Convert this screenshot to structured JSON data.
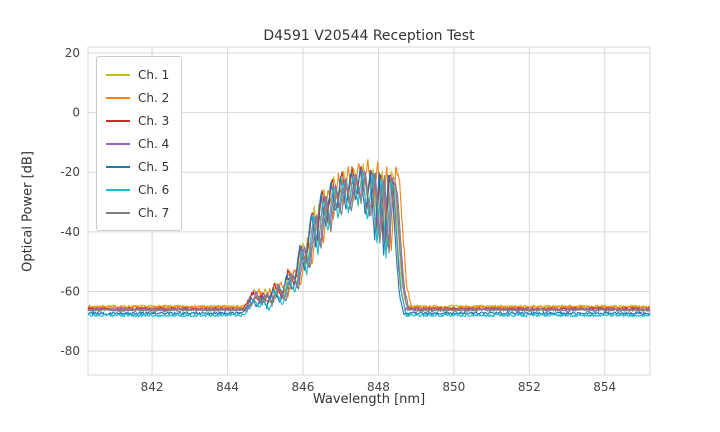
{
  "chart_data": {
    "type": "line",
    "title": "D4591 V20544 Reception Test",
    "xlabel": "Wavelength [nm]",
    "ylabel": "Optical Power [dB]",
    "xlim": [
      840.3,
      855.2
    ],
    "ylim": [
      -88,
      22
    ],
    "xticks": [
      842,
      844,
      846,
      848,
      850,
      852,
      854
    ],
    "yticks": [
      20,
      0,
      -20,
      -40,
      -60,
      -80
    ],
    "grid": true,
    "grid_color": "#d9d9d9",
    "background": "#ffffff",
    "legend_position": "upper left",
    "legend_title": "",
    "series": [
      {
        "name": "Ch. 1",
        "color": "#bcbd22",
        "baseline": -65.0,
        "dx": 0.0,
        "scale": 1.0
      },
      {
        "name": "Ch. 2",
        "color": "#ff7f0e",
        "baseline": -65.3,
        "dx": 0.12,
        "scale": 1.03
      },
      {
        "name": "Ch. 3",
        "color": "#d62728",
        "baseline": -65.8,
        "dx": -0.05,
        "scale": 1.02
      },
      {
        "name": "Ch. 4",
        "color": "#9467bd",
        "baseline": -66.0,
        "dx": 0.03,
        "scale": 0.98
      },
      {
        "name": "Ch. 5",
        "color": "#1f77b4",
        "baseline": -67.3,
        "dx": -0.08,
        "scale": 1.02
      },
      {
        "name": "Ch. 6",
        "color": "#17becf",
        "baseline": -68.0,
        "dx": -0.02,
        "scale": 1.0
      },
      {
        "name": "Ch. 7",
        "color": "#7f7f7f",
        "baseline": -66.3,
        "dx": 0.06,
        "scale": 0.97
      }
    ],
    "spectrum_profile_reference_baseline_db": -65,
    "profile_points": [
      [
        844.45,
        null
      ],
      [
        844.6,
        -62.5
      ],
      [
        844.72,
        -59.5
      ],
      [
        844.85,
        -62.5
      ],
      [
        845.0,
        -59.8
      ],
      [
        845.12,
        -62.8
      ],
      [
        845.3,
        -57.0
      ],
      [
        845.48,
        -61.5
      ],
      [
        845.65,
        -52.5
      ],
      [
        845.82,
        -57.5
      ],
      [
        846.0,
        -43.0
      ],
      [
        846.12,
        -51.0
      ],
      [
        846.3,
        -32.0
      ],
      [
        846.42,
        -44.0
      ],
      [
        846.55,
        -25.5
      ],
      [
        846.68,
        -37.0
      ],
      [
        846.82,
        -22.0
      ],
      [
        846.95,
        -32.5
      ],
      [
        847.08,
        -20.0
      ],
      [
        847.22,
        -30.5
      ],
      [
        847.35,
        -18.0
      ],
      [
        847.48,
        -27.5
      ],
      [
        847.6,
        -17.2
      ],
      [
        847.73,
        -33.0
      ],
      [
        847.86,
        -18.0
      ],
      [
        847.98,
        -41.0
      ],
      [
        848.1,
        -19.0
      ],
      [
        848.22,
        -46.0
      ],
      [
        848.34,
        -20.0
      ],
      [
        848.44,
        -23.5
      ],
      [
        848.55,
        -45.0
      ],
      [
        848.63,
        -58.0
      ],
      [
        848.75,
        null
      ]
    ],
    "noise": {
      "seed": 7,
      "floor_amp": 0.45,
      "peak_amp": 0.9
    },
    "sample_step_nm": 0.02
  }
}
